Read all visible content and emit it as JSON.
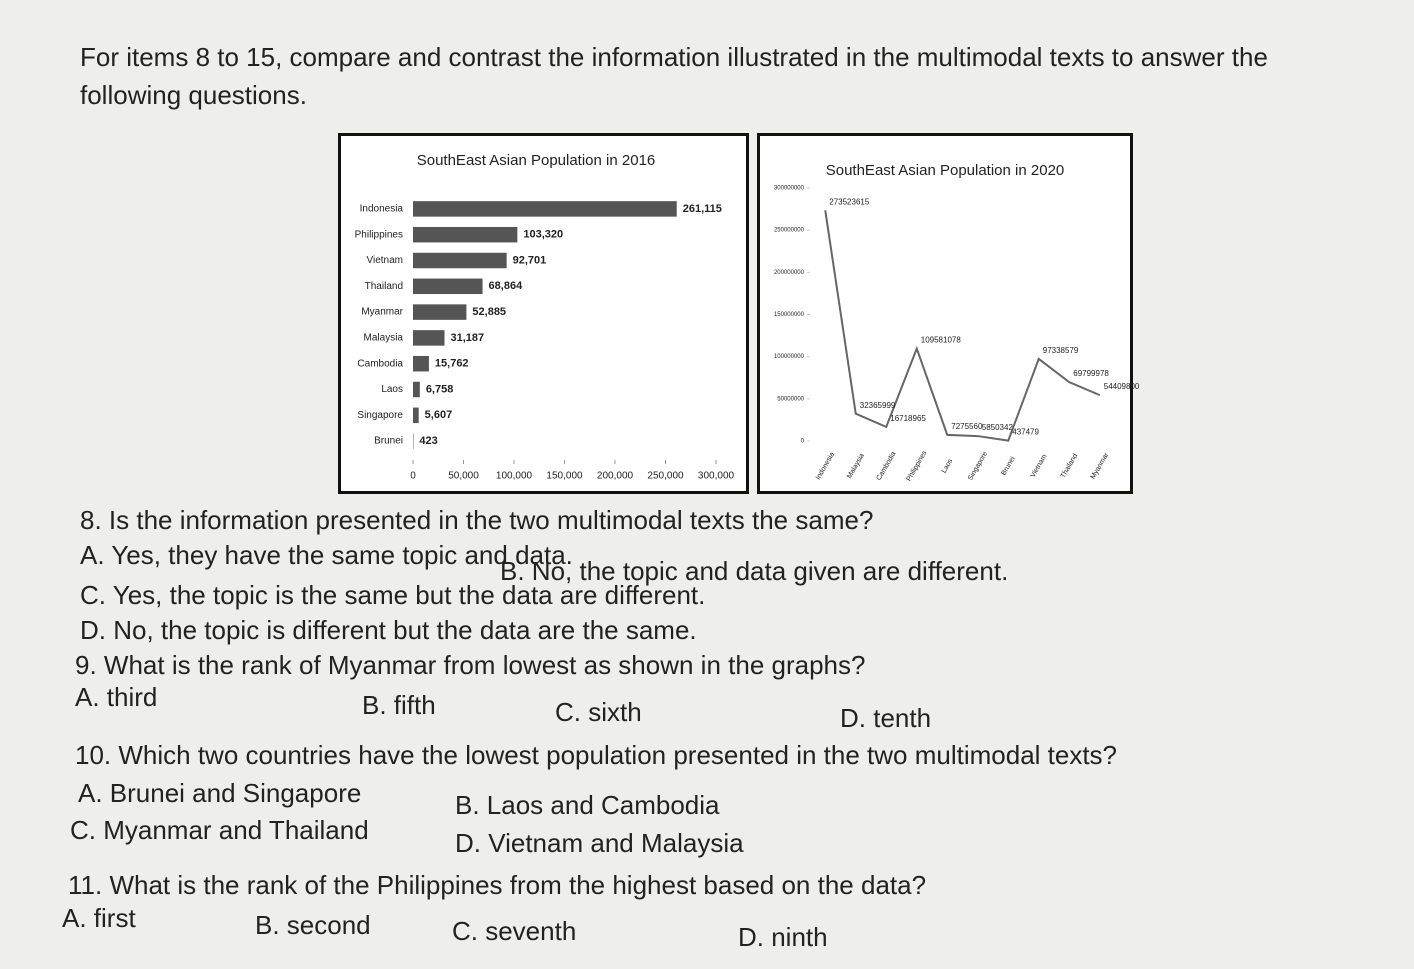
{
  "instructions": "For items 8 to 15, compare and contrast the information illustrated in the multimodal texts to answer the following questions.",
  "chart_data": [
    {
      "type": "hbar",
      "title": "SouthEast Asian Population in 2016",
      "categories": [
        "Indonesia",
        "Philippines",
        "Vietnam",
        "Thailand",
        "Myanmar",
        "Malaysia",
        "Cambodia",
        "Laos",
        "Singapore",
        "Brunei"
      ],
      "values": [
        261115,
        103320,
        92701,
        68864,
        52885,
        31187,
        15762,
        6758,
        5607,
        423
      ],
      "value_labels": [
        "261,115",
        "103,320",
        "92,701",
        "68,864",
        "52,885",
        "31,187",
        "15,762",
        "6,758",
        "5,607",
        "423"
      ],
      "color": "#555555",
      "xlim": [
        0,
        300000
      ],
      "xticks": [
        0,
        {
          "value": 50000,
          "label": "50,000"
        },
        {
          "value": 100000,
          "label": "100,000"
        },
        {
          "value": 150000,
          "label": "150,000"
        },
        {
          "value": 200000,
          "label": "200,000"
        },
        {
          "value": 250000,
          "label": "250,000"
        },
        {
          "value": 300000,
          "label": "300,000"
        }
      ]
    },
    {
      "type": "line",
      "title": "SouthEast Asian Population in 2020",
      "categories": [
        "Indonesia",
        "Malaysia",
        "Cambodia",
        "Philippines",
        "Laos",
        "Singapore",
        "Brunei",
        "Vietnam",
        "Thailand",
        "Myanmar"
      ],
      "values": [
        273523615,
        32365999,
        16718965,
        109581078,
        7275560,
        5850342,
        437479,
        97338579,
        69799978,
        54409800
      ],
      "color": "#666666",
      "ylim": [
        0,
        300000000
      ],
      "yticks": [
        0,
        50000000,
        100000000,
        150000000,
        200000000,
        250000000,
        300000000
      ]
    }
  ],
  "questions": [
    {
      "question": "8. Is the information presented in the two multimodal texts the same?",
      "options": [
        "A. Yes, they have the same topic and data.",
        "B. No, the topic and data given are different.",
        "C. Yes, the topic is the same but the data are different.",
        "D. No, the topic is different but the data are the same."
      ]
    },
    {
      "question": "9. What is the rank of Myanmar from lowest as shown in the graphs?",
      "options": [
        "A. third",
        "B. fifth",
        "C. sixth",
        "D. tenth"
      ]
    },
    {
      "question": "10. Which two countries have the lowest population presented in the two multimodal texts?",
      "options": [
        "A. Brunei and Singapore",
        "B. Laos and Cambodia",
        "C. Myanmar and Thailand",
        "D. Vietnam and Malaysia"
      ]
    },
    {
      "question": "11. What is the rank of the Philippines from the highest based on the data?",
      "options": [
        "A. first",
        "B. second",
        "C. seventh",
        "D. ninth"
      ]
    }
  ]
}
